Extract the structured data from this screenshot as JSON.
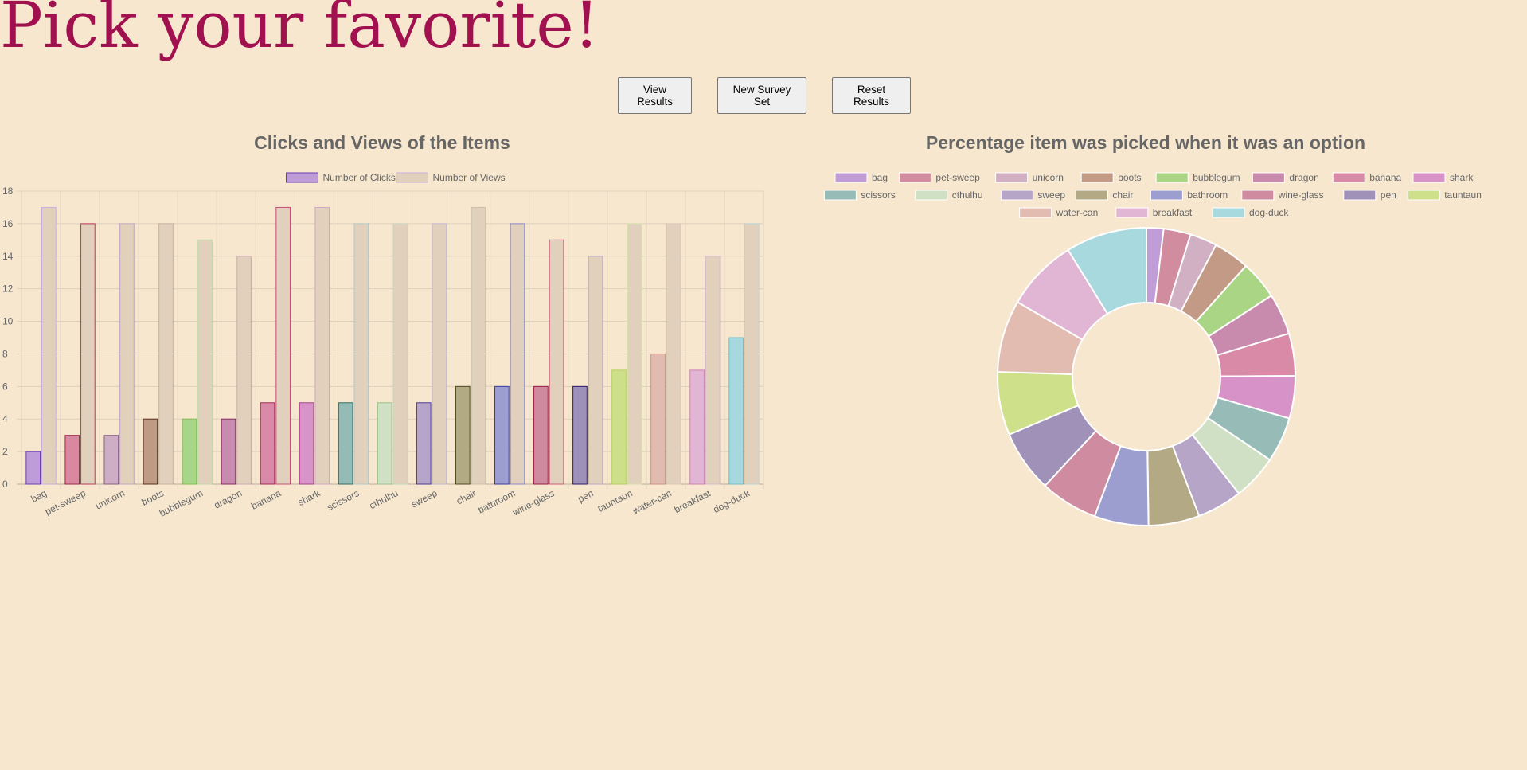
{
  "page": {
    "title": "Pick your favorite!"
  },
  "buttons": {
    "view_results": "View Results",
    "new_survey_set": "New Survey Set",
    "reset_results": "Reset Results"
  },
  "chart_data": [
    {
      "type": "bar",
      "title": "Clicks and Views of the Items",
      "categories": [
        "bag",
        "pet-sweep",
        "unicorn",
        "boots",
        "bubblegum",
        "dragon",
        "banana",
        "shark",
        "scissors",
        "cthulhu",
        "sweep",
        "chair",
        "bathroom",
        "wine-glass",
        "pen",
        "tauntaun",
        "water-can",
        "breakfast",
        "dog-duck"
      ],
      "series": [
        {
          "name": "Number of Clicks",
          "values": [
            2,
            3,
            3,
            4,
            4,
            4,
            5,
            5,
            5,
            5,
            5,
            6,
            6,
            6,
            6,
            7,
            8,
            7,
            9
          ]
        },
        {
          "name": "Number of Views",
          "values": [
            17,
            16,
            16,
            16,
            15,
            14,
            17,
            17,
            16,
            16,
            16,
            17,
            16,
            15,
            14,
            16,
            16,
            14,
            16
          ]
        }
      ],
      "ylim": [
        0,
        18
      ],
      "yticks": [
        0,
        2,
        4,
        6,
        8,
        10,
        12,
        14,
        16,
        18
      ],
      "legend": "top",
      "grid": true,
      "colors": {
        "clicks_fill": [
          "#bd9cd9",
          "#d8899f",
          "#cdaec4",
          "#bf9a85",
          "#a8d689",
          "#c98aaf",
          "#d98aa8",
          "#d894c8",
          "#94bbb6",
          "#cfe0c5",
          "#b6a5c9",
          "#b1aa83",
          "#9c9ecf",
          "#cf8aa0",
          "#9d90b9",
          "#cedf8a",
          "#e1bbaf",
          "#e1b6d4",
          "#a6d8de"
        ],
        "clicks_border": [
          "#6a3bb5",
          "#a0224e",
          "#8a5f85",
          "#5b2e1a",
          "#7ac04a",
          "#8a2a64",
          "#a32a58",
          "#a8408a",
          "#2f6e66",
          "#9ac28a",
          "#4a3a9a",
          "#4f4a20",
          "#3a3aa0",
          "#9a1a45",
          "#2a1a6a",
          "#b7cf60",
          "#cf9080",
          "#cf80b5",
          "#6abfca"
        ],
        "views_fill": "#e0d0bc",
        "views_border": [
          "#c7aee0",
          "#c2335e",
          "#c0a5c0",
          "#c8b0a0",
          "#bcd9a6",
          "#d0a6bb",
          "#c74a7a",
          "#d0a6c8",
          "#b3c9c5",
          "#c6d7bf",
          "#c5b7d4",
          "#c8c2a5",
          "#8888d0",
          "#d05a7a",
          "#b8a8c9",
          "#d6e0a9",
          "#e0c6b8",
          "#d9b9cc",
          "#b5d5da"
        ]
      }
    },
    {
      "type": "pie",
      "title": "Percentage item was picked when it was an option",
      "labels": [
        "bag",
        "pet-sweep",
        "unicorn",
        "boots",
        "bubblegum",
        "dragon",
        "banana",
        "shark",
        "scissors",
        "cthulhu",
        "sweep",
        "chair",
        "bathroom",
        "wine-glass",
        "pen",
        "tauntaun",
        "water-can",
        "breakfast",
        "dog-duck"
      ],
      "values": [
        11.8,
        18.8,
        18.8,
        25.0,
        26.7,
        28.6,
        29.4,
        29.4,
        31.3,
        31.3,
        31.3,
        35.3,
        37.5,
        40.0,
        42.9,
        43.8,
        50.0,
        50.0,
        56.3
      ],
      "donut": true,
      "legend": "top",
      "colors": [
        "#c09dd6",
        "#d28c9f",
        "#d1b0c4",
        "#c29a86",
        "#a9d585",
        "#c98bad",
        "#d88aa6",
        "#d792c8",
        "#97bcb7",
        "#d0e0c4",
        "#b7a5c8",
        "#b3aa85",
        "#9c9ecf",
        "#cf8ba0",
        "#9f91b8",
        "#cfe08a",
        "#e2bcb0",
        "#e1b6d4",
        "#a8d9df"
      ]
    }
  ]
}
